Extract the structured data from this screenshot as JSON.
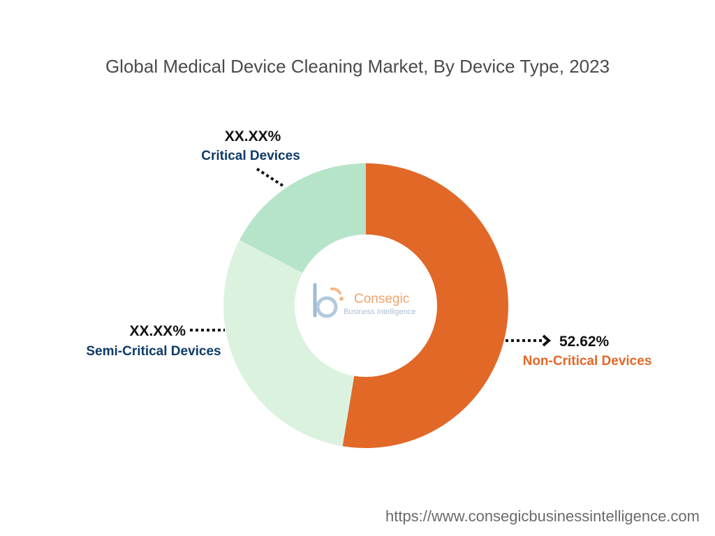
{
  "chart_data": {
    "type": "pie",
    "variant": "donut",
    "title": "Global Medical Device Cleaning Market, By Device Type, 2023",
    "slices": [
      {
        "name": "Non-Critical Devices",
        "value": 52.62,
        "value_label": "52.62%",
        "color": "#e26827",
        "label_color": "#e26827"
      },
      {
        "name": "Semi-Critical Devices",
        "value": 30.0,
        "value_label": "XX.XX%",
        "color": "#dbf2df",
        "label_color": "#0d3a67"
      },
      {
        "name": "Critical Devices",
        "value": 17.38,
        "value_label": "XX.XX%",
        "color": "#b6e4c9",
        "label_color": "#0d3a67"
      }
    ],
    "start_angle": "12 o'clock",
    "direction": "clockwise",
    "legend": "none"
  },
  "center_logo": {
    "icon": "consegic-logo-icon",
    "name": "Consegic",
    "tagline": "Business Intelligence"
  },
  "footer": {
    "url": "https://www.consegicbusinessintelligence.com"
  }
}
